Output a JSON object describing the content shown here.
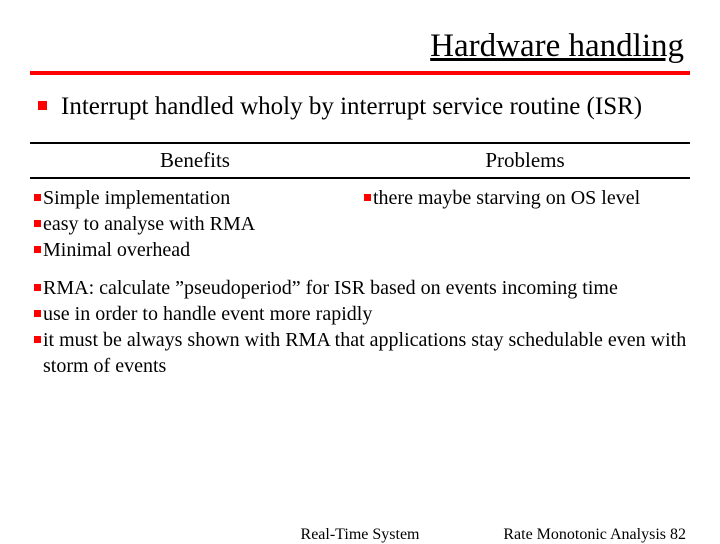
{
  "title": "Hardware handling",
  "main_bullet": "Interrupt handled wholy by interrupt service routine (ISR)",
  "col_left_header": "Benefits",
  "col_right_header": "Problems",
  "benefits": {
    "b1": "Simple implementation",
    "b2": "easy to analyse with RMA",
    "b3": "Minimal overhead"
  },
  "problems": {
    "p1": "there maybe starving on OS level"
  },
  "notes": {
    "n1": "RMA: calculate ”pseudoperiod” for ISR based on events incoming time",
    "n2": "use in order to handle event more rapidly",
    "n3": "it must be always shown with RMA that applications stay schedulable even with storm of events"
  },
  "footer_center": "Real-Time System",
  "footer_right": "Rate Monotonic Analysis 82"
}
